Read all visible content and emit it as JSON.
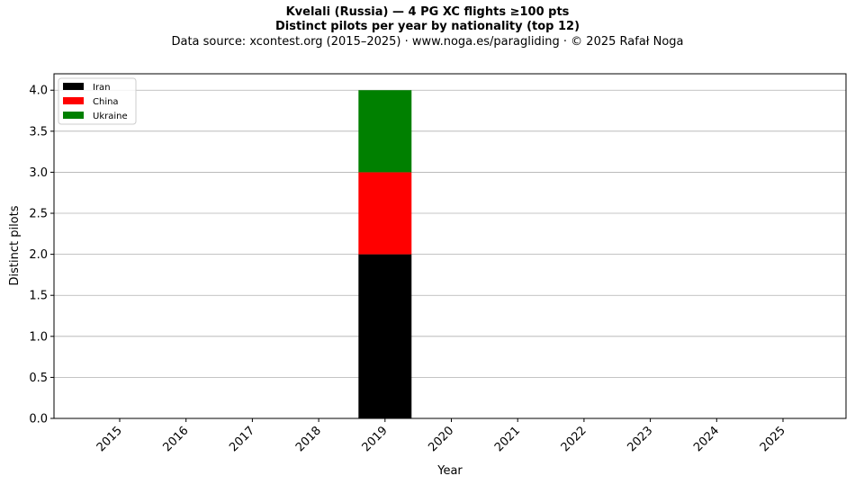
{
  "chart_data": {
    "type": "bar",
    "stacked": true,
    "title": "Kvelali (Russia)  —  4 PG XC flights ≥100 pts",
    "subtitle": "Distinct pilots per year by nationality (top 12)",
    "source": "Data source: xcontest.org (2015–2025)  ·  www.noga.es/paragliding  ·  © 2025 Rafał Noga",
    "xlabel": "Year",
    "ylabel": "Distinct pilots",
    "categories": [
      "2015",
      "2016",
      "2017",
      "2018",
      "2019",
      "2020",
      "2021",
      "2022",
      "2023",
      "2024",
      "2025"
    ],
    "series": [
      {
        "name": "Iran",
        "color": "#000000",
        "values": [
          0,
          0,
          0,
          0,
          2,
          0,
          0,
          0,
          0,
          0,
          0
        ]
      },
      {
        "name": "China",
        "color": "#ff0000",
        "values": [
          0,
          0,
          0,
          0,
          1,
          0,
          0,
          0,
          0,
          0,
          0
        ]
      },
      {
        "name": "Ukraine",
        "color": "#008000",
        "values": [
          0,
          0,
          0,
          0,
          1,
          0,
          0,
          0,
          0,
          0,
          0
        ]
      }
    ],
    "ylim": [
      0,
      4.2
    ],
    "yticks": [
      "0.0",
      "0.5",
      "1.0",
      "1.5",
      "2.0",
      "2.5",
      "3.0",
      "3.5",
      "4.0"
    ],
    "ytick_values": [
      0,
      0.5,
      1.0,
      1.5,
      2.0,
      2.5,
      3.0,
      3.5,
      4.0
    ],
    "grid": "y",
    "legend_position": "top-left"
  }
}
